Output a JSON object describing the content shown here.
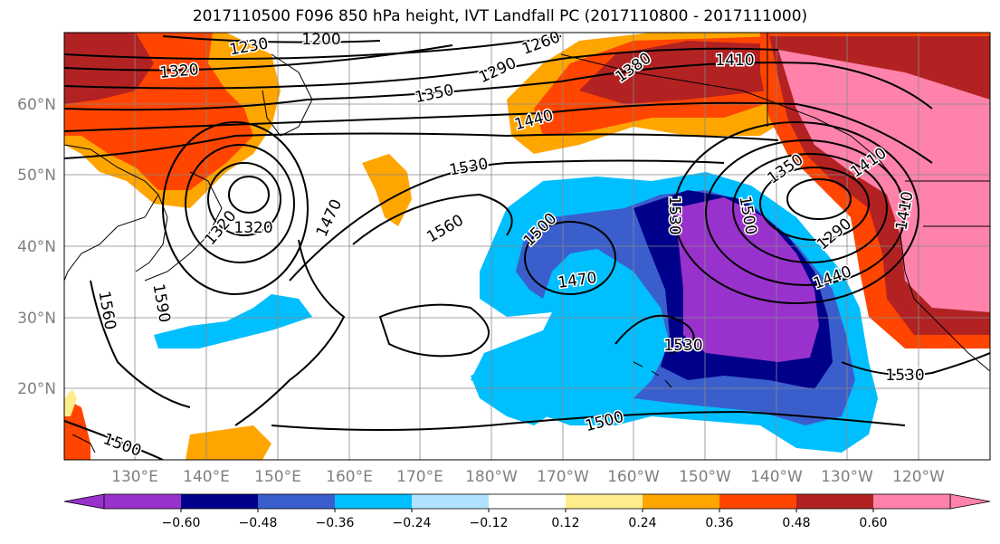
{
  "title": "2017110500 F096 850 hPa height, IVT Landfall PC (2017110800 - 2017111000)",
  "map": {
    "lon_range": [
      120,
      250
    ],
    "lat_range": [
      10,
      70
    ],
    "lat_labels": [
      "20°N",
      "30°N",
      "40°N",
      "50°N",
      "60°N"
    ],
    "lon_labels": [
      "130°E",
      "140°E",
      "150°E",
      "160°E",
      "170°E",
      "180°W",
      "170°W",
      "160°W",
      "150°W",
      "140°W",
      "130°W",
      "120°W"
    ],
    "gridlines": true,
    "contour_labels": [
      {
        "text": "1230"
      },
      {
        "text": "1200"
      },
      {
        "text": "1260"
      },
      {
        "text": "1320"
      },
      {
        "text": "1290"
      },
      {
        "text": "1380"
      },
      {
        "text": "1410"
      },
      {
        "text": "1350"
      },
      {
        "text": "1440"
      },
      {
        "text": "1530"
      },
      {
        "text": "1470"
      },
      {
        "text": "1560"
      },
      {
        "text": "1500"
      },
      {
        "text": "1320"
      },
      {
        "text": "1530"
      },
      {
        "text": "1500"
      },
      {
        "text": "1470"
      },
      {
        "text": "1350"
      },
      {
        "text": "1290"
      },
      {
        "text": "1440"
      },
      {
        "text": "1410"
      },
      {
        "text": "1530"
      },
      {
        "text": "1500"
      },
      {
        "text": "1530"
      },
      {
        "text": "1500"
      },
      {
        "text": "1560"
      },
      {
        "text": "1590"
      },
      {
        "text": "1320"
      },
      {
        "text": "1410"
      }
    ]
  },
  "colorbar": {
    "colors": [
      "#9932cc",
      "#00008b",
      "#3a5fcd",
      "#00bfff",
      "#b0e2ff",
      "#ffffff",
      "#ffec8b",
      "#ffa500",
      "#ff4500",
      "#b22222",
      "#ff82ab"
    ],
    "ticks": [
      "−0.60",
      "−0.48",
      "−0.36",
      "−0.24",
      "−0.12",
      "0.12",
      "0.24",
      "0.36",
      "0.48",
      "0.60"
    ]
  }
}
